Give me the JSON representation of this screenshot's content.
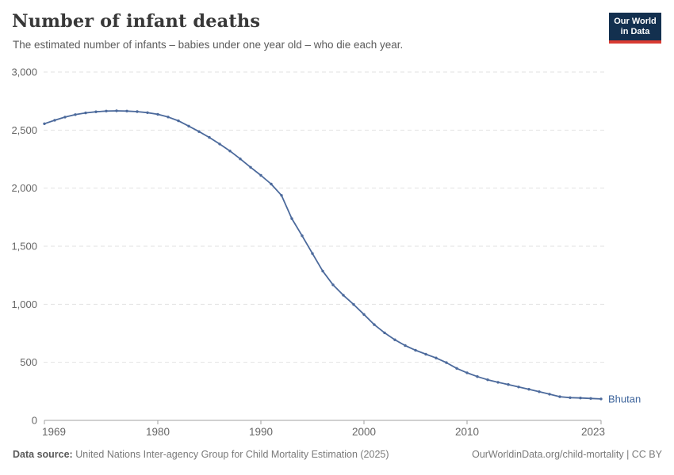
{
  "chart_data": {
    "type": "line",
    "title": "Number of infant deaths",
    "subtitle": "The estimated number of infants – babies under one year old – who die each year.",
    "entity": "Bhutan",
    "years": [
      1969,
      1970,
      1971,
      1972,
      1973,
      1974,
      1975,
      1976,
      1977,
      1978,
      1979,
      1980,
      1981,
      1982,
      1983,
      1984,
      1985,
      1986,
      1987,
      1988,
      1989,
      1990,
      1991,
      1992,
      1993,
      1994,
      1995,
      1996,
      1997,
      1998,
      1999,
      2000,
      2001,
      2002,
      2003,
      2004,
      2005,
      2006,
      2007,
      2008,
      2009,
      2010,
      2011,
      2012,
      2013,
      2014,
      2015,
      2016,
      2017,
      2018,
      2019,
      2020,
      2021,
      2022,
      2023
    ],
    "values": [
      2555,
      2585,
      2612,
      2633,
      2648,
      2658,
      2664,
      2666,
      2664,
      2659,
      2650,
      2636,
      2613,
      2580,
      2534,
      2487,
      2437,
      2380,
      2320,
      2252,
      2180,
      2110,
      2035,
      1938,
      1738,
      1590,
      1437,
      1286,
      1167,
      1078,
      998,
      912,
      824,
      754,
      694,
      644,
      604,
      570,
      537,
      497,
      448,
      410,
      377,
      350,
      328,
      309,
      288,
      268,
      247,
      226,
      204,
      196,
      193,
      189,
      185
    ],
    "xlim": [
      1969,
      2023
    ],
    "ylim": [
      0,
      3000
    ],
    "xticks": [
      1969,
      1980,
      1990,
      2000,
      2010,
      2023
    ],
    "yticks": [
      0,
      500,
      1000,
      1500,
      2000,
      2500,
      3000
    ],
    "ytick_labels": [
      "0",
      "500",
      "1,000",
      "1,500",
      "2,000",
      "2,500",
      "3,000"
    ],
    "grid": true,
    "legend_position": "end-of-line",
    "line_color": "#4c6a9c",
    "entity_label_color": "#3d649b",
    "grid_color": "#e2e2e2",
    "axis_color": "#a0a0a0",
    "tick_label_color": "#666666"
  },
  "logo": {
    "line1": "Our World",
    "line2": "in Data"
  },
  "footer": {
    "source_label": "Data source:",
    "source_text": "United Nations Inter-agency Group for Child Mortality Estimation (2025)",
    "credit": "OurWorldinData.org/child-mortality | CC BY"
  }
}
